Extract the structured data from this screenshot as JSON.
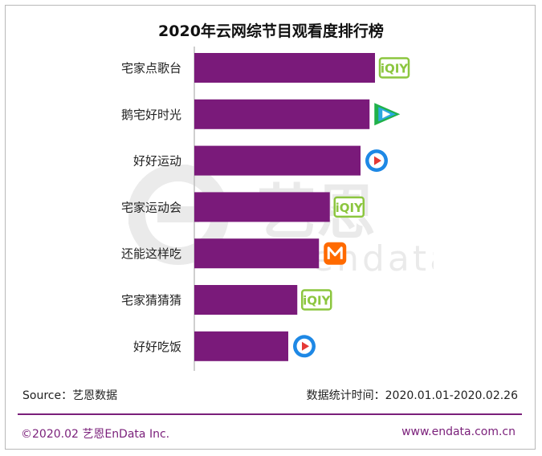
{
  "title": "2020年云网综节目观看度排行榜",
  "colors": {
    "bar": "#7a1a7a",
    "accent": "#7a1f7a",
    "iqiyi": "#8cc63f",
    "tencent_green": "#20b14a",
    "tencent_blue": "#2aa8e0",
    "youku_blue": "#1e88e5",
    "mango": "#ff6a00"
  },
  "chart_data": {
    "type": "bar",
    "orientation": "horizontal",
    "title": "2020年云网综节目观看度排行榜",
    "categories": [
      "宅家点歌台",
      "鹅宅好时光",
      "好好运动",
      "宅家运动会",
      "还能这样吃",
      "宅家猜猜猜",
      "好好吃饭"
    ],
    "values": [
      100,
      97,
      92,
      75,
      69,
      57,
      52
    ],
    "platforms": [
      "iqiyi",
      "tencent",
      "youku",
      "iqiyi",
      "mango",
      "iqiyi",
      "youku"
    ],
    "xlim": [
      0,
      100
    ],
    "grid": false,
    "legend": "none"
  },
  "logos": {
    "iqiyi_text": "iQIY"
  },
  "watermark": {
    "name": "艺恩",
    "latin": "endata"
  },
  "footer": {
    "source": "Source：艺恩数据",
    "period": "数据统计时间：2020.01.01-2020.02.26",
    "copyright": "©2020.02 艺恩EnData Inc.",
    "website": "www.endata.com.cn"
  }
}
